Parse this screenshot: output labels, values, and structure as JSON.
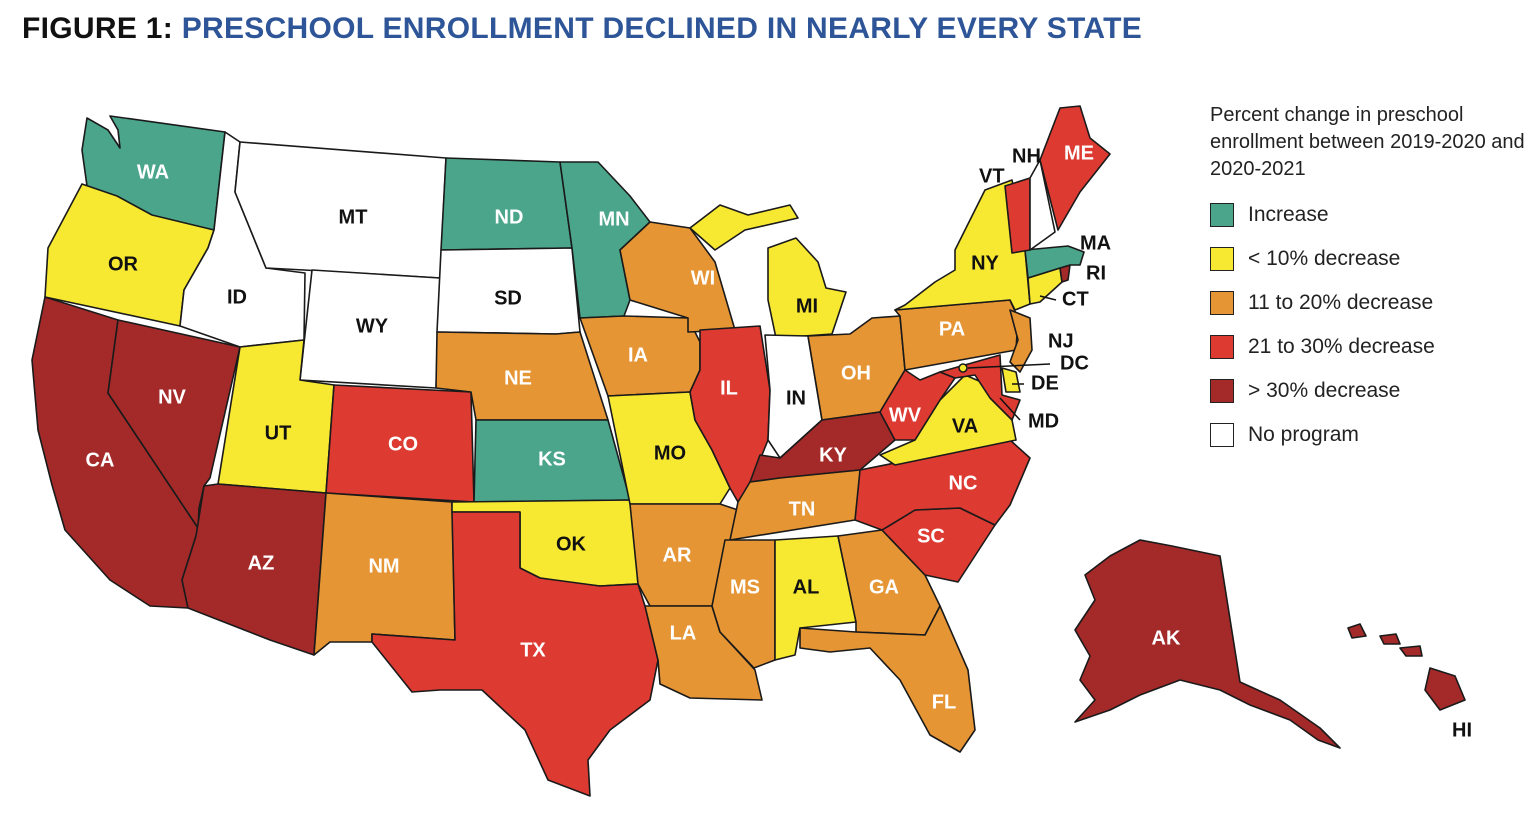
{
  "title": {
    "prefix": "FIGURE 1:",
    "text": "PRESCHOOL ENROLLMENT DECLINED IN NEARLY EVERY STATE"
  },
  "colors": {
    "increase": "#4aa58b",
    "lt10": "#f7e832",
    "d11to20": "#e69534",
    "d21to30": "#dd3a32",
    "gt30": "#a42a2a",
    "none": "#ffffff"
  },
  "legend": {
    "title": "Percent change in preschool enrollment between 2019-2020 and 2020-2021",
    "items": [
      {
        "key": "increase",
        "label": "Increase"
      },
      {
        "key": "lt10",
        "label": "< 10% decrease"
      },
      {
        "key": "d11to20",
        "label": "11 to 20% decrease"
      },
      {
        "key": "d21to30",
        "label": "21 to 30% decrease"
      },
      {
        "key": "gt30",
        "label": "> 30% decrease"
      },
      {
        "key": "none",
        "label": "No program"
      }
    ]
  },
  "states": [
    {
      "abbr": "WA",
      "category": "increase"
    },
    {
      "abbr": "OR",
      "category": "lt10"
    },
    {
      "abbr": "CA",
      "category": "gt30"
    },
    {
      "abbr": "NV",
      "category": "gt30"
    },
    {
      "abbr": "ID",
      "category": "none"
    },
    {
      "abbr": "MT",
      "category": "none"
    },
    {
      "abbr": "WY",
      "category": "none"
    },
    {
      "abbr": "UT",
      "category": "lt10"
    },
    {
      "abbr": "AZ",
      "category": "gt30"
    },
    {
      "abbr": "CO",
      "category": "d21to30"
    },
    {
      "abbr": "NM",
      "category": "d11to20"
    },
    {
      "abbr": "ND",
      "category": "increase"
    },
    {
      "abbr": "SD",
      "category": "none"
    },
    {
      "abbr": "NE",
      "category": "d11to20"
    },
    {
      "abbr": "KS",
      "category": "increase"
    },
    {
      "abbr": "OK",
      "category": "lt10"
    },
    {
      "abbr": "TX",
      "category": "d21to30"
    },
    {
      "abbr": "MN",
      "category": "increase"
    },
    {
      "abbr": "IA",
      "category": "d11to20"
    },
    {
      "abbr": "MO",
      "category": "lt10"
    },
    {
      "abbr": "AR",
      "category": "d11to20"
    },
    {
      "abbr": "LA",
      "category": "d11to20"
    },
    {
      "abbr": "WI",
      "category": "d11to20"
    },
    {
      "abbr": "IL",
      "category": "d21to30"
    },
    {
      "abbr": "MI",
      "category": "lt10"
    },
    {
      "abbr": "IN",
      "category": "none"
    },
    {
      "abbr": "OH",
      "category": "d11to20"
    },
    {
      "abbr": "KY",
      "category": "gt30"
    },
    {
      "abbr": "TN",
      "category": "d11to20"
    },
    {
      "abbr": "MS",
      "category": "d11to20"
    },
    {
      "abbr": "AL",
      "category": "lt10"
    },
    {
      "abbr": "GA",
      "category": "d11to20"
    },
    {
      "abbr": "FL",
      "category": "d11to20"
    },
    {
      "abbr": "SC",
      "category": "d21to30"
    },
    {
      "abbr": "NC",
      "category": "d21to30"
    },
    {
      "abbr": "VA",
      "category": "lt10"
    },
    {
      "abbr": "WV",
      "category": "d21to30"
    },
    {
      "abbr": "PA",
      "category": "d11to20"
    },
    {
      "abbr": "NY",
      "category": "lt10"
    },
    {
      "abbr": "NJ",
      "category": "d11to20"
    },
    {
      "abbr": "DE",
      "category": "lt10"
    },
    {
      "abbr": "MD",
      "category": "d21to30"
    },
    {
      "abbr": "DC",
      "category": "lt10"
    },
    {
      "abbr": "CT",
      "category": "lt10"
    },
    {
      "abbr": "RI",
      "category": "gt30"
    },
    {
      "abbr": "MA",
      "category": "increase"
    },
    {
      "abbr": "VT",
      "category": "d21to30"
    },
    {
      "abbr": "NH",
      "category": "none"
    },
    {
      "abbr": "ME",
      "category": "d21to30"
    },
    {
      "abbr": "AK",
      "category": "gt30"
    },
    {
      "abbr": "HI",
      "category": "gt30"
    }
  ]
}
